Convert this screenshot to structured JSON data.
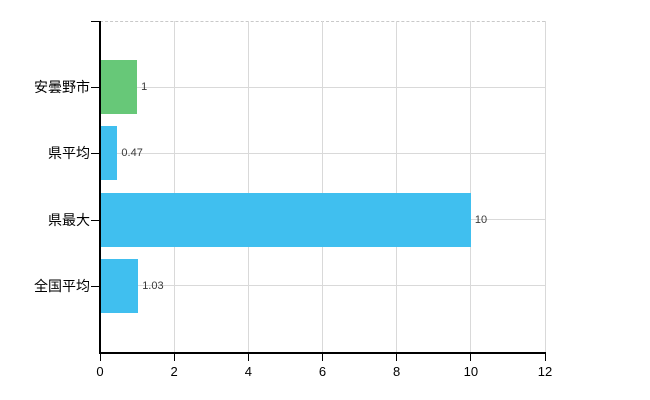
{
  "chart_data": {
    "type": "bar",
    "orientation": "horizontal",
    "title": "",
    "xlabel": "",
    "ylabel": "",
    "categories": [
      "安曇野市",
      "県平均",
      "県最大",
      "全国平均"
    ],
    "values": [
      1,
      0.47,
      10,
      1.03
    ],
    "value_labels": [
      "1",
      "0.47",
      "10",
      "1.03"
    ],
    "bar_colors": [
      "#67c878",
      "#40bfef",
      "#40bfef",
      "#40bfef"
    ],
    "xlim": [
      0,
      12
    ],
    "x_ticks": [
      0,
      2,
      4,
      6,
      8,
      10,
      12
    ],
    "x_tick_labels": [
      "0",
      "2",
      "4",
      "6",
      "8",
      "10",
      "12"
    ],
    "grid": true,
    "legend": false
  },
  "colors": {
    "background": "#ffffff",
    "axis": "#000000",
    "gridline": "#d9d9d9",
    "top_border": "#c9c9c9",
    "value_label_text": "#3a3a3a",
    "axis_label_text": "#000000"
  }
}
